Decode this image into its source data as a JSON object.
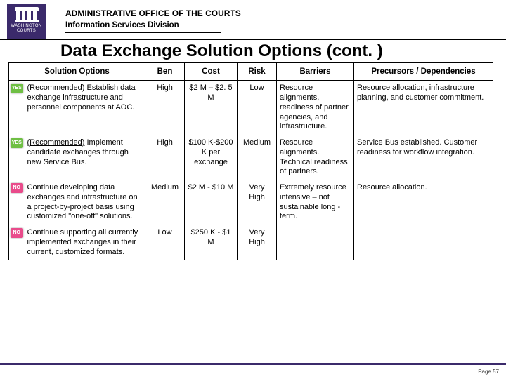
{
  "brand": {
    "logo_color": "#3b2a6b",
    "logo_line1": "WASHINGTON",
    "logo_line2": "COURTS"
  },
  "header": {
    "line1": "ADMINISTRATIVE OFFICE OF THE COURTS",
    "line2": "Information Services Division"
  },
  "title": "Data Exchange Solution Options (cont. )",
  "columns": [
    "Solution Options",
    "Ben",
    "Cost",
    "Risk",
    "Barriers",
    "Precursors / Dependencies"
  ],
  "badges": {
    "yes": {
      "label": "YES",
      "bg": "#6fbf44"
    },
    "no": {
      "label": "NO",
      "bg": "#e94b8b"
    }
  },
  "rows": [
    {
      "badge": "yes",
      "option_prefix": "(Recommended)",
      "option_rest": " Establish data exchange infrastructure and personnel components at AOC.",
      "ben": "High",
      "cost": "$2 M – $2. 5 M",
      "risk": "Low",
      "barriers": "Resource alignments, readiness of partner agencies, and infrastructure.",
      "precursors": "Resource allocation, infrastructure planning, and customer commitment."
    },
    {
      "badge": "yes",
      "option_prefix": "(Recommended)",
      "option_rest": " Implement candidate exchanges through new Service Bus.",
      "ben": "High",
      "cost": "$100 K-$200 K per exchange",
      "risk": "Medium",
      "barriers": "Resource alignments. Technical readiness of partners.",
      "precursors": "Service Bus established. Customer readiness for workflow integration."
    },
    {
      "badge": "no",
      "option_prefix": "",
      "option_rest": "Continue developing data exchanges and infrastructure on a project-by-project basis using customized \"one-off\" solutions.",
      "ben": "Medium",
      "cost": "$2 M - $10 M",
      "risk": "Very High",
      "barriers": "Extremely resource intensive – not sustainable long -term.",
      "precursors": "Resource allocation."
    },
    {
      "badge": "no",
      "option_prefix": "",
      "option_rest": "Continue supporting all currently implemented exchanges in their current, customized formats.",
      "ben": "Low",
      "cost": "$250 K - $1 M",
      "risk": "Very High",
      "barriers": "",
      "precursors": ""
    }
  ],
  "footer": {
    "page": "Page 57"
  }
}
